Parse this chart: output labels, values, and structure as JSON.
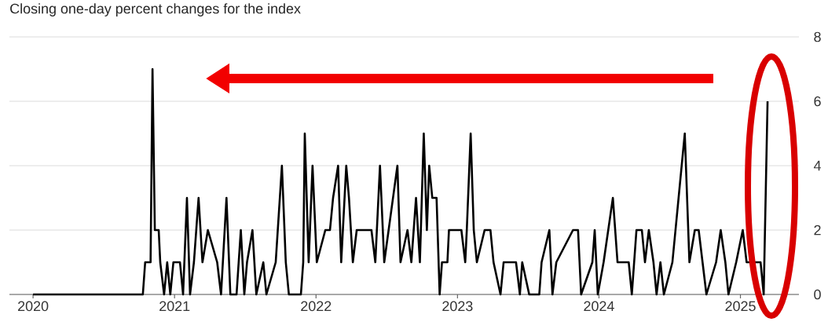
{
  "chart_data": {
    "type": "line",
    "title": "Closing one-day percent changes for the index",
    "x": [
      "2020-01-01",
      "2020-10-11",
      "2020-10-17",
      "2020-10-31",
      "2020-11-05",
      "2020-11-11",
      "2020-11-21",
      "2020-11-25",
      "2020-12-05",
      "2020-12-13",
      "2020-12-21",
      "2020-12-29",
      "2021-01-15",
      "2021-01-23",
      "2021-02-02",
      "2021-02-10",
      "2021-02-20",
      "2021-03-04",
      "2021-03-14",
      "2021-03-28",
      "2021-04-21",
      "2021-05-01",
      "2021-05-15",
      "2021-05-25",
      "2021-06-10",
      "2021-06-21",
      "2021-06-30",
      "2021-07-07",
      "2021-07-21",
      "2021-07-31",
      "2021-08-18",
      "2021-08-26",
      "2021-09-19",
      "2021-10-05",
      "2021-10-15",
      "2021-10-23",
      "2021-11-23",
      "2021-11-29",
      "2021-12-03",
      "2021-12-13",
      "2021-12-23",
      "2022-01-03",
      "2022-01-25",
      "2022-02-06",
      "2022-02-14",
      "2022-02-27",
      "2022-03-07",
      "2022-03-20",
      "2022-03-27",
      "2022-04-06",
      "2022-04-16",
      "2022-05-24",
      "2022-06-03",
      "2022-06-15",
      "2022-06-26",
      "2022-07-30",
      "2022-08-07",
      "2022-08-25",
      "2022-09-04",
      "2022-09-16",
      "2022-09-26",
      "2022-10-06",
      "2022-10-14",
      "2022-10-20",
      "2022-10-28",
      "2022-11-08",
      "2022-11-16",
      "2022-11-22",
      "2022-12-06",
      "2022-12-10",
      "2023-01-11",
      "2023-01-21",
      "2023-01-25",
      "2023-02-04",
      "2023-02-12",
      "2023-02-20",
      "2023-03-12",
      "2023-03-27",
      "2023-04-04",
      "2023-04-22",
      "2023-04-30",
      "2023-06-01",
      "2023-06-11",
      "2023-06-17",
      "2023-07-05",
      "2023-07-31",
      "2023-08-06",
      "2023-08-26",
      "2023-09-03",
      "2023-09-13",
      "2023-10-26",
      "2023-11-08",
      "2023-11-16",
      "2023-12-15",
      "2023-12-21",
      "2023-12-29",
      "2024-01-13",
      "2024-02-06",
      "2024-02-18",
      "2024-03-18",
      "2024-03-26",
      "2024-04-07",
      "2024-04-21",
      "2024-04-29",
      "2024-05-09",
      "2024-05-21",
      "2024-05-29",
      "2024-06-08",
      "2024-06-17",
      "2024-07-09",
      "2024-08-10",
      "2024-08-22",
      "2024-09-05",
      "2024-09-15",
      "2024-09-25",
      "2024-10-05",
      "2024-10-30",
      "2024-11-11",
      "2024-11-23",
      "2024-12-01",
      "2024-12-21",
      "2025-01-07",
      "2025-01-17",
      "2025-02-22",
      "2025-03-02",
      "2025-03-12"
    ],
    "series": [
      {
        "color": "#000000",
        "values": [
          0,
          0,
          1,
          1,
          7,
          2,
          2,
          1,
          0,
          1,
          0,
          1,
          1,
          0,
          3,
          0,
          1,
          3,
          1,
          2,
          1,
          0,
          3,
          0,
          0,
          2,
          0,
          1,
          2,
          0,
          1,
          0,
          1,
          4,
          1,
          0,
          0,
          1,
          5,
          1,
          4,
          1,
          2,
          2,
          3,
          4,
          1,
          4,
          3,
          1,
          2,
          2,
          1,
          4,
          1,
          4,
          1,
          2,
          1,
          3,
          1,
          5,
          2,
          4,
          3,
          3,
          0,
          1,
          1,
          2,
          2,
          1,
          2,
          5,
          2,
          1,
          2,
          2,
          1,
          0,
          1,
          1,
          0,
          1,
          0,
          0,
          1,
          2,
          0,
          1,
          2,
          2,
          0,
          1,
          2,
          0,
          1,
          3,
          1,
          1,
          0,
          2,
          2,
          1,
          2,
          1,
          0,
          1,
          0,
          1,
          5,
          1,
          2,
          2,
          1,
          0,
          1,
          2,
          1,
          0,
          1,
          2,
          1,
          1,
          0,
          6
        ]
      }
    ],
    "xlim": [
      "2019-11-01",
      "2025-06-01"
    ],
    "xticks": [
      "2020",
      "2021",
      "2022",
      "2023",
      "2024",
      "2025"
    ],
    "ylim": [
      0,
      8
    ],
    "yticks": [
      0,
      2,
      4,
      6,
      8
    ],
    "grid": "y",
    "line_style": "solid"
  }
}
